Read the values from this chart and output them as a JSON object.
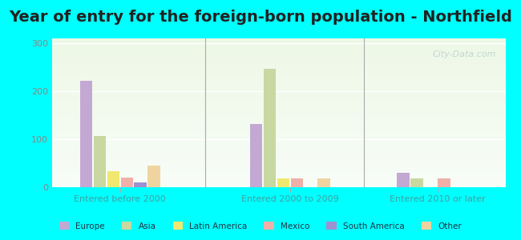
{
  "title": "Year of entry for the foreign-born population - Northfield",
  "categories": [
    "Entered before 2000",
    "Entered 2000 to 2009",
    "Entered 2010 or later"
  ],
  "series": {
    "Europe": [
      222,
      132,
      30
    ],
    "Asia": [
      106,
      247,
      18
    ],
    "Latin America": [
      33,
      18,
      0
    ],
    "Mexico": [
      20,
      18,
      18
    ],
    "South America": [
      10,
      0,
      0
    ],
    "Other": [
      45,
      18,
      0
    ]
  },
  "colors": {
    "Europe": "#c4a8d4",
    "Asia": "#c8d8a0",
    "Latin America": "#f0e870",
    "Mexico": "#f0b0a8",
    "South America": "#a090d0",
    "Other": "#f0d4a0"
  },
  "ylim": [
    0,
    310
  ],
  "yticks": [
    0,
    100,
    200,
    300
  ],
  "background_color": "#00ffff",
  "plot_bg_top": "#e8f4e8",
  "plot_bg_bottom": "#f8fff0",
  "title_fontsize": 14,
  "axis_label_color": "#40a0a0",
  "watermark": "City-Data.com"
}
